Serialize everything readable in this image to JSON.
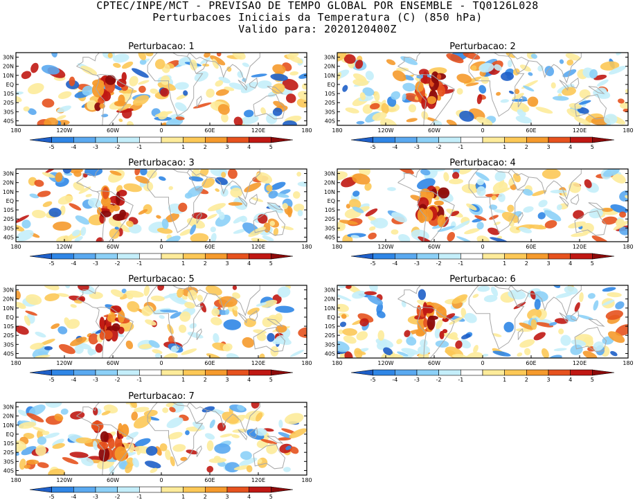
{
  "header": {
    "line1": "CPTEC/INPE/MCT - PREVISAO DE TEMPO GLOBAL POR ENSEMBLE - TQ0126L028",
    "line2": "Perturbacoes Iniciais da Temperatura (C) (850 hPa)",
    "line3": "Valido para: 2020120400Z"
  },
  "chart_data": {
    "type": "heatmap",
    "variable": "temperature perturbation",
    "units": "C",
    "level": "850 hPa",
    "lon_range": [
      -180,
      180
    ],
    "lat_range": [
      -45,
      35
    ],
    "x_ticks": [
      "180",
      "120W",
      "60W",
      "0",
      "60E",
      "120E",
      "180"
    ],
    "y_ticks": [
      "30N",
      "20N",
      "10N",
      "EQ",
      "10S",
      "20S",
      "30S",
      "40S"
    ],
    "colorbar": {
      "labels": [
        "-5",
        "-4",
        "-3",
        "-2",
        "-1",
        "1",
        "2",
        "3",
        "4",
        "5"
      ],
      "colors": [
        "#1e5fc8",
        "#2f86e6",
        "#5aa9f0",
        "#8cd0f7",
        "#c4eefa",
        "#ffffff",
        "#fdeb9a",
        "#fcc856",
        "#f59a2c",
        "#e6521e",
        "#c01813",
        "#8c0a0a"
      ]
    },
    "panels": [
      {
        "title": "Perturbacao: 1",
        "seed": 11
      },
      {
        "title": "Perturbacao: 2",
        "seed": 23
      },
      {
        "title": "Perturbacao: 3",
        "seed": 37
      },
      {
        "title": "Perturbacao: 4",
        "seed": 41
      },
      {
        "title": "Perturbacao: 5",
        "seed": 53
      },
      {
        "title": "Perturbacao: 6",
        "seed": 67
      },
      {
        "title": "Perturbacao: 7",
        "seed": 79
      }
    ]
  }
}
